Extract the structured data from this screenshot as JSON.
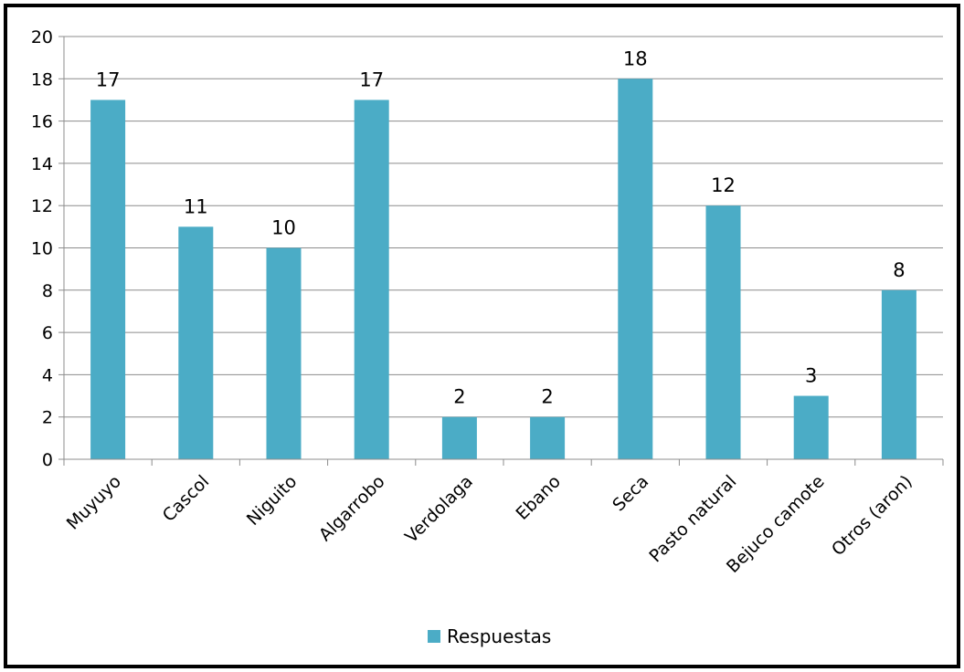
{
  "chart_data": {
    "type": "bar",
    "categories": [
      "Muyuyo",
      "Cascol",
      "Niguito",
      "Algarrobo",
      "Verdolaga",
      "Ebano",
      "Seca",
      "Pasto natural",
      "Bejuco camote",
      "Otros (aron)"
    ],
    "series": [
      {
        "name": "Respuestas",
        "values": [
          17,
          11,
          10,
          17,
          2,
          2,
          18,
          12,
          3,
          8
        ],
        "color": "#4BACC6"
      }
    ],
    "ylim": [
      0,
      20
    ],
    "yticks": [
      0,
      2,
      4,
      6,
      8,
      10,
      12,
      14,
      16,
      18,
      20
    ],
    "grid": true,
    "legend": "bottom",
    "data_labels": true
  }
}
